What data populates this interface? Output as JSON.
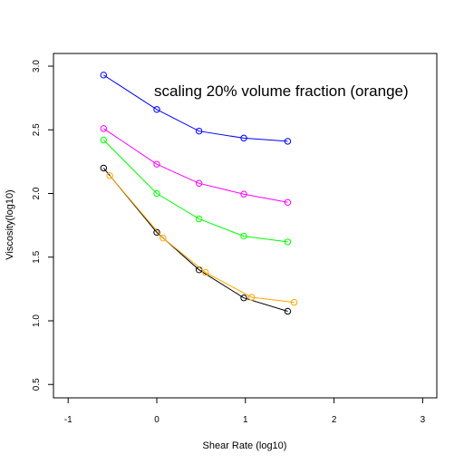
{
  "chart_data": {
    "type": "line",
    "title": "",
    "annotation": "scaling 20% volume fraction (orange)",
    "xlabel": "Shear Rate (log10)",
    "ylabel": "Viscosity(log10)",
    "xlim": [
      -1,
      3
    ],
    "ylim": [
      0.5,
      3.0
    ],
    "xticks": [
      -1,
      0,
      1,
      2,
      3
    ],
    "yticks": [
      0.5,
      1.0,
      1.5,
      2.0,
      2.5,
      3.0
    ],
    "xtick_labels": [
      "-1",
      "0",
      "1",
      "2",
      "3"
    ],
    "ytick_labels": [
      "0.5",
      "1.0",
      "1.5",
      "2.0",
      "2.5",
      "3.0"
    ],
    "grid": false,
    "markers": "open-circle",
    "series": [
      {
        "color": "#0000ff",
        "x": [
          -0.6,
          0.0,
          0.477,
          0.982,
          1.477
        ],
        "y": [
          2.93,
          2.66,
          2.49,
          2.435,
          2.41
        ]
      },
      {
        "color": "#ff00ff",
        "x": [
          -0.6,
          0.0,
          0.477,
          0.982,
          1.477
        ],
        "y": [
          2.51,
          2.23,
          2.08,
          1.995,
          1.93
        ]
      },
      {
        "color": "#00ff00",
        "x": [
          -0.6,
          0.0,
          0.477,
          0.982,
          1.477
        ],
        "y": [
          2.42,
          2.0,
          1.8,
          1.665,
          1.62
        ]
      },
      {
        "color": "#000000",
        "x": [
          -0.6,
          0.0,
          0.477,
          0.982,
          1.477
        ],
        "y": [
          2.2,
          1.695,
          1.4,
          1.18,
          1.075
        ]
      },
      {
        "color": "#ffa500",
        "x": [
          -0.53,
          0.07,
          0.55,
          1.07,
          1.55
        ],
        "y": [
          2.14,
          1.65,
          1.38,
          1.185,
          1.145
        ]
      }
    ]
  }
}
